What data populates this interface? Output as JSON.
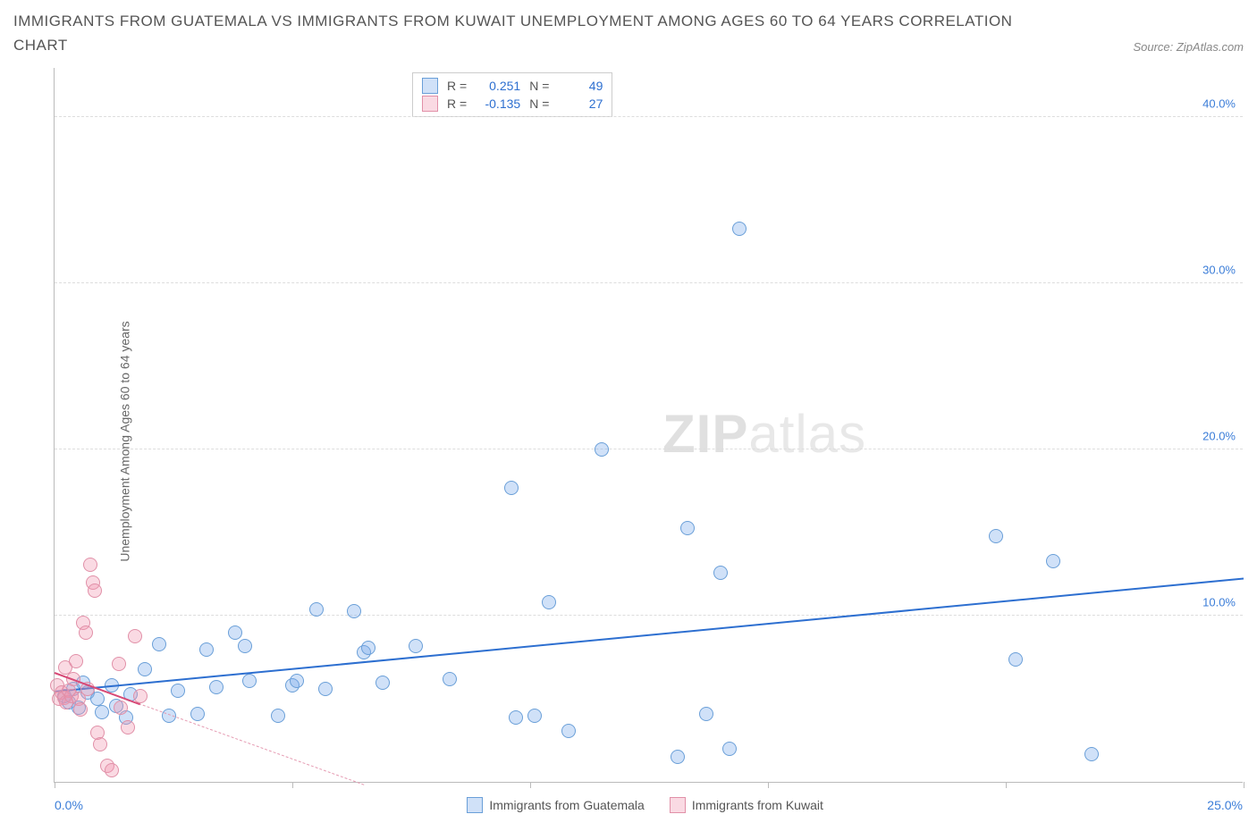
{
  "title": "IMMIGRANTS FROM GUATEMALA VS IMMIGRANTS FROM KUWAIT UNEMPLOYMENT AMONG AGES 60 TO 64 YEARS CORRELATION CHART",
  "source": "Source: ZipAtlas.com",
  "y_axis_label": "Unemployment Among Ages 60 to 64 years",
  "watermark_bold": "ZIP",
  "watermark_light": "atlas",
  "chart": {
    "type": "scatter",
    "xlim": [
      0,
      25
    ],
    "ylim": [
      0,
      43
    ],
    "x_ticks": [
      0,
      5,
      10,
      15,
      20,
      25
    ],
    "x_tick_labels": [
      "0.0%",
      "",
      "",
      "",
      "",
      "25.0%"
    ],
    "y_grid": [
      10,
      20,
      30,
      40
    ],
    "y_tick_labels": [
      "10.0%",
      "20.0%",
      "30.0%",
      "40.0%"
    ],
    "y_tick_color": "#3b7dd8",
    "x_tick_color": "#3b7dd8",
    "grid_color": "#dddddd",
    "axis_color": "#bbbbbb",
    "background_color": "#ffffff"
  },
  "series": [
    {
      "name": "Immigrants from Guatemala",
      "color_fill": "rgba(120,170,235,0.35)",
      "color_stroke": "#6a9fd8",
      "marker_radius": 8,
      "r_value": "0.251",
      "n_value": "49",
      "trend": {
        "x1": 0,
        "y1": 5.4,
        "x2": 25,
        "y2": 12.2,
        "color": "#2d6fd0",
        "width": 2.5,
        "dashed": false
      },
      "points": [
        [
          0.2,
          5.2
        ],
        [
          0.3,
          4.8
        ],
        [
          0.4,
          5.6
        ],
        [
          0.5,
          4.5
        ],
        [
          0.6,
          6.0
        ],
        [
          0.7,
          5.4
        ],
        [
          0.9,
          5.0
        ],
        [
          1.0,
          4.2
        ],
        [
          1.2,
          5.8
        ],
        [
          1.3,
          4.6
        ],
        [
          1.5,
          3.9
        ],
        [
          1.6,
          5.3
        ],
        [
          1.9,
          6.8
        ],
        [
          2.2,
          8.3
        ],
        [
          2.4,
          4.0
        ],
        [
          2.6,
          5.5
        ],
        [
          3.0,
          4.1
        ],
        [
          3.2,
          8.0
        ],
        [
          3.4,
          5.7
        ],
        [
          3.8,
          9.0
        ],
        [
          4.0,
          8.2
        ],
        [
          4.1,
          6.1
        ],
        [
          4.7,
          4.0
        ],
        [
          5.0,
          5.8
        ],
        [
          5.1,
          6.1
        ],
        [
          5.5,
          10.4
        ],
        [
          5.7,
          5.6
        ],
        [
          6.3,
          10.3
        ],
        [
          6.5,
          7.8
        ],
        [
          6.6,
          8.1
        ],
        [
          6.9,
          6.0
        ],
        [
          7.6,
          8.2
        ],
        [
          8.3,
          6.2
        ],
        [
          9.6,
          17.7
        ],
        [
          9.7,
          3.9
        ],
        [
          10.1,
          4.0
        ],
        [
          10.4,
          10.8
        ],
        [
          10.8,
          3.1
        ],
        [
          11.5,
          20.0
        ],
        [
          13.1,
          1.5
        ],
        [
          13.3,
          15.3
        ],
        [
          13.7,
          4.1
        ],
        [
          14.0,
          12.6
        ],
        [
          14.2,
          2.0
        ],
        [
          14.4,
          33.3
        ],
        [
          19.8,
          14.8
        ],
        [
          20.2,
          7.4
        ],
        [
          21.0,
          13.3
        ],
        [
          21.8,
          1.7
        ]
      ]
    },
    {
      "name": "Immigrants from Kuwait",
      "color_fill": "rgba(240,150,175,0.35)",
      "color_stroke": "#e190a8",
      "marker_radius": 8,
      "r_value": "-0.135",
      "n_value": "27",
      "trend": {
        "x1": 0,
        "y1": 6.5,
        "x2": 6.5,
        "y2": -0.2,
        "color": "#e59bb2",
        "width": 1,
        "dashed": true
      },
      "extra_trend": {
        "x1": 0,
        "y1": 6.5,
        "x2": 1.8,
        "y2": 4.6,
        "color": "#d74a77",
        "width": 2,
        "dashed": false
      },
      "points": [
        [
          0.05,
          5.8
        ],
        [
          0.1,
          5.0
        ],
        [
          0.15,
          5.4
        ],
        [
          0.2,
          5.1
        ],
        [
          0.22,
          6.9
        ],
        [
          0.25,
          4.8
        ],
        [
          0.3,
          5.5
        ],
        [
          0.35,
          5.2
        ],
        [
          0.4,
          6.2
        ],
        [
          0.45,
          7.3
        ],
        [
          0.5,
          5.0
        ],
        [
          0.55,
          4.4
        ],
        [
          0.6,
          9.6
        ],
        [
          0.65,
          9.0
        ],
        [
          0.7,
          5.6
        ],
        [
          0.75,
          13.1
        ],
        [
          0.8,
          12.0
        ],
        [
          0.85,
          11.5
        ],
        [
          0.9,
          3.0
        ],
        [
          0.95,
          2.3
        ],
        [
          1.1,
          1.0
        ],
        [
          1.2,
          0.7
        ],
        [
          1.35,
          7.1
        ],
        [
          1.4,
          4.5
        ],
        [
          1.55,
          3.3
        ],
        [
          1.7,
          8.8
        ],
        [
          1.8,
          5.2
        ]
      ]
    }
  ],
  "stats_labels": {
    "r": "R =",
    "n": "N ="
  },
  "legend_x_max": "25.0%",
  "legend_x_min": "0.0%"
}
